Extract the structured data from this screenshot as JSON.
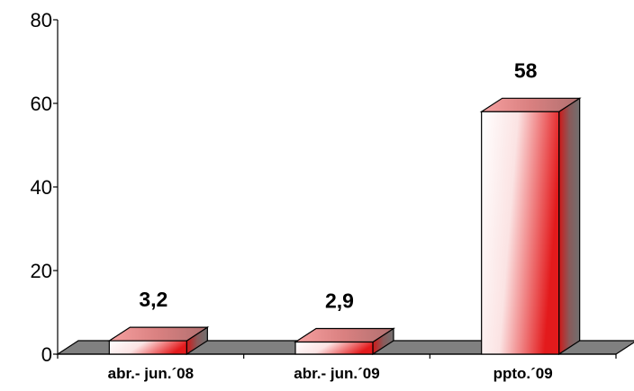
{
  "chart_data": {
    "type": "bar",
    "categories": [
      "abr.- jun.´08",
      "abr.- jun.´09",
      "ppto.´09"
    ],
    "values": [
      3.2,
      2.9,
      58
    ],
    "data_labels": [
      "3,2",
      "2,9",
      "58"
    ],
    "y_ticks": [
      "0",
      "20",
      "40",
      "60",
      "80"
    ],
    "ylim": [
      0,
      80
    ],
    "grid": false,
    "legend": "none",
    "colors": {
      "bar_edge": "#e31a1c",
      "bar_light": "#ffffff",
      "bar_side": "#7f7f7f",
      "floor": "#808080"
    }
  }
}
